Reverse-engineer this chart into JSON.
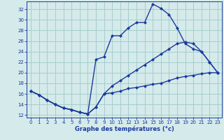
{
  "xlabel": "Graphe des températures (°c)",
  "bg_color": "#d5eaea",
  "grid_color": "#a0c8c8",
  "line_color": "#1a3a9e",
  "ylim": [
    11.5,
    33.5
  ],
  "yticks": [
    12,
    14,
    16,
    18,
    20,
    22,
    24,
    26,
    28,
    30,
    32
  ],
  "xlim": [
    -0.5,
    23.5
  ],
  "xticks": [
    0,
    1,
    2,
    3,
    4,
    5,
    6,
    7,
    8,
    9,
    10,
    11,
    12,
    13,
    14,
    15,
    16,
    17,
    18,
    19,
    20,
    21,
    22,
    23
  ],
  "markersize": 2.5,
  "linewidth": 1.0,
  "s1_x": [
    0,
    1,
    2,
    3,
    4,
    5,
    6,
    7,
    8,
    9,
    10,
    11,
    12,
    13,
    14,
    15,
    16,
    17,
    18,
    19,
    20,
    21,
    22,
    23
  ],
  "s1_y": [
    16.5,
    15.8,
    14.8,
    14.0,
    13.3,
    13.0,
    12.5,
    12.2,
    22.5,
    23.0,
    27.0,
    27.0,
    28.5,
    29.5,
    29.5,
    33.0,
    32.2,
    31.0,
    28.5,
    25.5,
    24.5,
    24.0,
    22.0,
    20.0
  ],
  "s2_x": [
    0,
    1,
    2,
    3,
    4,
    5,
    6,
    7,
    8,
    9,
    10,
    11,
    12,
    13,
    14,
    15,
    16,
    17,
    18,
    19,
    20,
    21,
    22,
    23
  ],
  "s2_y": [
    16.5,
    15.8,
    14.8,
    14.0,
    13.3,
    13.0,
    12.5,
    12.2,
    13.5,
    16.0,
    17.5,
    18.5,
    19.5,
    20.5,
    21.5,
    22.5,
    23.5,
    24.5,
    25.5,
    25.8,
    25.5,
    24.0,
    22.0,
    20.0
  ],
  "s3_x": [
    0,
    1,
    2,
    3,
    4,
    5,
    6,
    7,
    8,
    9,
    10,
    11,
    12,
    13,
    14,
    15,
    16,
    17,
    18,
    19,
    20,
    21,
    22,
    23
  ],
  "s3_y": [
    16.5,
    15.8,
    14.8,
    14.0,
    13.3,
    13.0,
    12.5,
    12.2,
    13.5,
    16.0,
    16.2,
    16.5,
    17.0,
    17.2,
    17.5,
    17.8,
    18.0,
    18.5,
    19.0,
    19.3,
    19.5,
    19.8,
    20.0,
    20.0
  ]
}
